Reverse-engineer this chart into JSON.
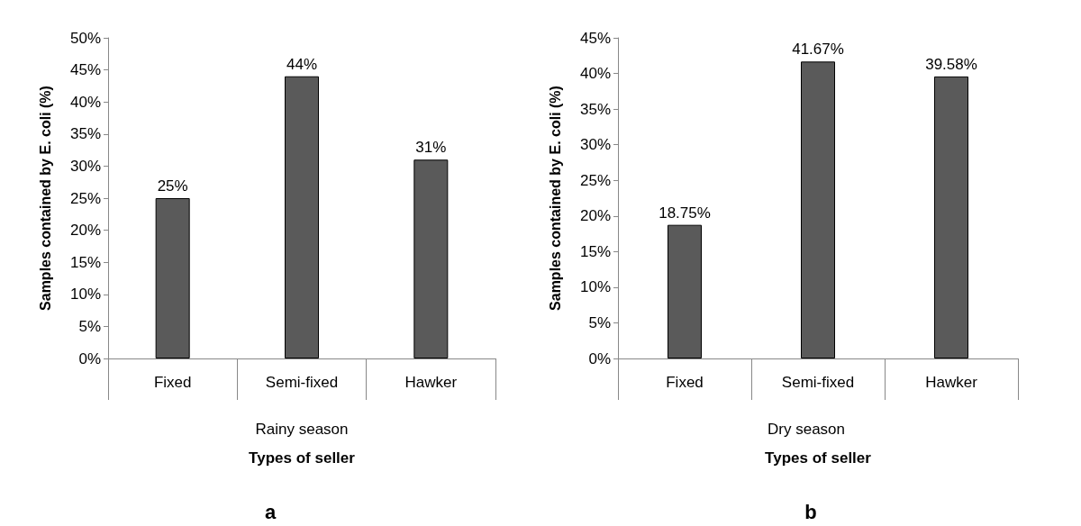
{
  "chart_data": [
    {
      "type": "bar",
      "title": "a",
      "ylabel": "Samples contained by E. coli (%)",
      "xlabel": "Types of seller",
      "annotations": [
        "Rainy season"
      ],
      "categories": [
        "Fixed",
        "Semi-fixed",
        "Hawker"
      ],
      "values": [
        25,
        44,
        31
      ],
      "color": "#5a5a5a",
      "value_labels": [
        "25%",
        "44%",
        "31%"
      ],
      "ylim": [
        0,
        50
      ],
      "yticks": [
        {
          "value": 0,
          "label": "0%"
        },
        {
          "value": 5,
          "label": "5%"
        },
        {
          "value": 10,
          "label": "10%"
        },
        {
          "value": 15,
          "label": "15%"
        },
        {
          "value": 20,
          "label": "20%"
        },
        {
          "value": 25,
          "label": "25%"
        },
        {
          "value": 30,
          "label": "30%"
        },
        {
          "value": 35,
          "label": "35%"
        },
        {
          "value": 40,
          "label": "40%"
        },
        {
          "value": 45,
          "label": "45%"
        },
        {
          "value": 50,
          "label": "50%"
        }
      ],
      "grid": false
    },
    {
      "type": "bar",
      "title": "b",
      "ylabel": "Samples contained by E. coli (%)",
      "xlabel": "Types of seller",
      "annotations": [
        "Dry season"
      ],
      "categories": [
        "Fixed",
        "Semi-fixed",
        "Hawker"
      ],
      "values": [
        18.75,
        41.67,
        39.58
      ],
      "color": "#5a5a5a",
      "value_labels": [
        "18.75%",
        "41.67%",
        "39.58%"
      ],
      "ylim": [
        0,
        45
      ],
      "yticks": [
        {
          "value": 0,
          "label": "0%"
        },
        {
          "value": 5,
          "label": "5%"
        },
        {
          "value": 10,
          "label": "10%"
        },
        {
          "value": 15,
          "label": "15%"
        },
        {
          "value": 20,
          "label": "20%"
        },
        {
          "value": 25,
          "label": "25%"
        },
        {
          "value": 30,
          "label": "30%"
        },
        {
          "value": 35,
          "label": "35%"
        },
        {
          "value": 40,
          "label": "40%"
        },
        {
          "value": 45,
          "label": "45%"
        }
      ],
      "grid": false
    }
  ]
}
